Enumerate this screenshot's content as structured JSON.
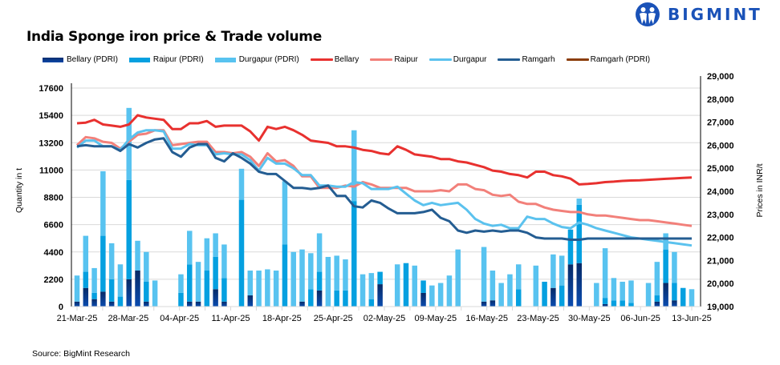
{
  "header": {
    "title": "India Sponge iron price & Trade volume",
    "brand": "BIGMINT"
  },
  "source": "Source: BigMint Research",
  "colors": {
    "bellary_pdri": "#0a3a8c",
    "raipur_pdri": "#05a0e0",
    "durgapur_pdri": "#58c3f0",
    "bellary": "#e8312f",
    "raipur": "#f2807a",
    "durgapur": "#5bc2ee",
    "ramgarh": "#245d92",
    "ramgarh_pdri": "#8b3d0a",
    "brand": "#1a52b8"
  },
  "chart_data": {
    "type": "bar+line",
    "title": "India Sponge iron price & Trade volume",
    "ylabel": "Quantity in t",
    "y2label": "Prices in INR/t",
    "ylim": [
      0,
      17600
    ],
    "yticks": [
      "0",
      "2200",
      "4400",
      "6600",
      "8800",
      "11000",
      "13200",
      "15400",
      "17600"
    ],
    "y2lim": [
      19000,
      29000
    ],
    "y2ticks": [
      "19,000",
      "20,000",
      "21,000",
      "22,000",
      "23,000",
      "24,000",
      "25,000",
      "26,000",
      "27,000",
      "28,000",
      "29,000"
    ],
    "xticks": [
      "21-Mar-25",
      "28-Mar-25",
      "04-Apr-25",
      "11-Apr-25",
      "18-Apr-25",
      "25-Apr-25",
      "02-May-25",
      "09-May-25",
      "16-May-25",
      "23-May-25",
      "30-May-25",
      "06-Jun-25",
      "13-Jun-25"
    ],
    "legend": [
      "Bellary (PDRI)",
      "Raipur (PDRI)",
      "Durgapur (PDRI)",
      "Bellary",
      "Raipur",
      "Durgapur",
      "Ramgarh",
      "Ramgarh (PDRI)"
    ],
    "legend_position": "top",
    "grid": true,
    "n_slots": 72,
    "bar_series": [
      {
        "name": "Bellary (PDRI)",
        "values": [
          400,
          1500,
          600,
          1200,
          400,
          0,
          2200,
          2900,
          400,
          0,
          0,
          0,
          0,
          400,
          400,
          0,
          1400,
          400,
          0,
          0,
          900,
          0,
          0,
          0,
          0,
          0,
          400,
          0,
          1300,
          0,
          0,
          0,
          0,
          0,
          0,
          1800,
          0,
          0,
          0,
          0,
          1100,
          0,
          0,
          0,
          0,
          0,
          0,
          400,
          500,
          0,
          0,
          0,
          0,
          0,
          0,
          1500,
          0,
          3400,
          3500,
          0,
          0,
          200,
          0,
          0,
          0,
          0,
          0,
          400,
          1900,
          500,
          0,
          0
        ]
      },
      {
        "name": "Raipur (PDRI)",
        "values": [
          0,
          1300,
          500,
          4500,
          1800,
          800,
          8000,
          0,
          1600,
          0,
          0,
          0,
          1100,
          3000,
          0,
          2900,
          2600,
          1900,
          0,
          8600,
          0,
          0,
          0,
          0,
          5000,
          0,
          0,
          1400,
          1500,
          0,
          1300,
          1300,
          8500,
          0,
          600,
          1000,
          0,
          0,
          3500,
          0,
          1000,
          0,
          0,
          0,
          0,
          0,
          0,
          0,
          0,
          0,
          0,
          1400,
          0,
          0,
          2000,
          0,
          1700,
          2800,
          4700,
          0,
          0,
          500,
          500,
          500,
          300,
          0,
          0,
          500,
          2700,
          1400,
          1500,
          0
        ]
      },
      {
        "name": "Durgapur (PDRI)",
        "values": [
          2100,
          2900,
          2000,
          5200,
          2900,
          2600,
          5800,
          2400,
          2400,
          2100,
          0,
          0,
          1500,
          2700,
          3200,
          2600,
          1900,
          2700,
          0,
          2500,
          2000,
          2900,
          3000,
          2900,
          5100,
          4400,
          4200,
          2900,
          3100,
          4000,
          2800,
          2500,
          5700,
          2600,
          2100,
          0,
          0,
          3400,
          0,
          3300,
          0,
          1700,
          1900,
          2500,
          4600,
          0,
          0,
          4400,
          2400,
          1900,
          2600,
          2000,
          0,
          3300,
          0,
          2700,
          2400,
          0,
          500,
          0,
          1900,
          4000,
          1800,
          1500,
          1800,
          0,
          1900,
          2700,
          1300,
          2500,
          0,
          1400
        ]
      }
    ],
    "line_series": [
      {
        "name": "Bellary",
        "values": [
          26950,
          26980,
          27100,
          26900,
          26850,
          26800,
          26900,
          27300,
          27200,
          27150,
          27100,
          26700,
          26700,
          26950,
          26950,
          27050,
          26800,
          26850,
          26850,
          26850,
          26600,
          26200,
          26800,
          26700,
          26800,
          26650,
          26450,
          26200,
          26150,
          26100,
          25950,
          25950,
          25900,
          25800,
          25750,
          25650,
          25600,
          25950,
          25800,
          25600,
          25550,
          25500,
          25400,
          25400,
          25300,
          25250,
          25150,
          25050,
          24900,
          24850,
          24750,
          24700,
          24600,
          24850,
          24850,
          24700,
          24650,
          24550,
          24300,
          24320,
          24350,
          24400,
          24420,
          24450,
          24470,
          24480,
          24500,
          24520,
          24540,
          24560,
          24580,
          24600
        ]
      },
      {
        "name": "Raipur",
        "values": [
          26000,
          26350,
          26300,
          26150,
          26100,
          25850,
          26150,
          26450,
          26500,
          26650,
          26650,
          26000,
          26050,
          26100,
          26150,
          26150,
          25700,
          25700,
          25650,
          25700,
          25500,
          25100,
          25650,
          25300,
          25350,
          25100,
          24650,
          24650,
          24150,
          24150,
          24150,
          24250,
          24200,
          24400,
          24300,
          24150,
          24150,
          24150,
          24150,
          24000,
          24000,
          24000,
          24050,
          24000,
          24300,
          24300,
          24100,
          24050,
          23850,
          23800,
          23850,
          23550,
          23450,
          23450,
          23300,
          23200,
          23150,
          23100,
          23100,
          23000,
          22950,
          22950,
          22900,
          22850,
          22800,
          22750,
          22750,
          22700,
          22650,
          22600,
          22550,
          22500
        ]
      },
      {
        "name": "Durgapur",
        "values": [
          25900,
          26200,
          26200,
          25950,
          25950,
          25800,
          26250,
          26550,
          26650,
          26650,
          26600,
          25850,
          25850,
          26050,
          26000,
          26000,
          25600,
          25650,
          25600,
          25600,
          25350,
          24900,
          25450,
          25200,
          25200,
          25000,
          24700,
          24700,
          24250,
          24250,
          24200,
          24200,
          24400,
          24350,
          24100,
          24100,
          24100,
          24200,
          23900,
          23600,
          23400,
          23500,
          23400,
          23450,
          23500,
          23200,
          22800,
          22600,
          22500,
          22550,
          22400,
          22400,
          22900,
          22800,
          22800,
          22600,
          22450,
          22400,
          22650,
          22550,
          22400,
          22300,
          22200,
          22100,
          22000,
          21950,
          21900,
          21850,
          21800,
          21750,
          21700,
          21650
        ]
      },
      {
        "name": "Ramgarh",
        "values": [
          25950,
          26000,
          25950,
          25950,
          25950,
          25750,
          26050,
          25900,
          26100,
          26250,
          26300,
          25700,
          25500,
          25900,
          26050,
          26050,
          25450,
          25300,
          25650,
          25450,
          25200,
          24850,
          24750,
          24750,
          24450,
          24150,
          24150,
          24100,
          24150,
          24250,
          23800,
          23800,
          23350,
          23300,
          23600,
          23500,
          23250,
          23050,
          23050,
          23050,
          23100,
          23200,
          22850,
          22700,
          22300,
          22200,
          22300,
          22250,
          22300,
          22250,
          22300,
          22300,
          22200,
          22000,
          21950,
          21950,
          21950,
          21900,
          21900,
          21950,
          21950,
          21950,
          21950,
          21950,
          21950,
          21950,
          21950,
          21950,
          21950,
          21950,
          21950,
          21950
        ]
      },
      {
        "name": "Ramgarh (PDRI)",
        "values": []
      }
    ]
  }
}
